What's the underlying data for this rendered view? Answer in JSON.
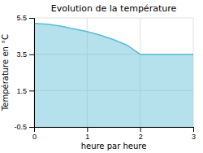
{
  "chart_data": {
    "type": "area",
    "title": "Evolution de la température",
    "xlabel": "heure par heure",
    "ylabel": "Température en °C",
    "x": [
      0,
      0.25,
      0.5,
      0.75,
      1.0,
      1.25,
      1.5,
      1.75,
      2.0,
      2.25,
      2.5,
      2.75,
      3.0
    ],
    "values": [
      5.2,
      5.15,
      5.05,
      4.9,
      4.75,
      4.55,
      4.3,
      4.0,
      3.5,
      3.5,
      3.5,
      3.5,
      3.5
    ],
    "xlim": [
      0,
      3
    ],
    "ylim": [
      -0.5,
      5.5
    ],
    "xticks": [
      0,
      1,
      2,
      3
    ],
    "yticks": [
      -0.5,
      1.5,
      3.5,
      5.5
    ],
    "grid": true,
    "color": "#5bbcd6"
  }
}
